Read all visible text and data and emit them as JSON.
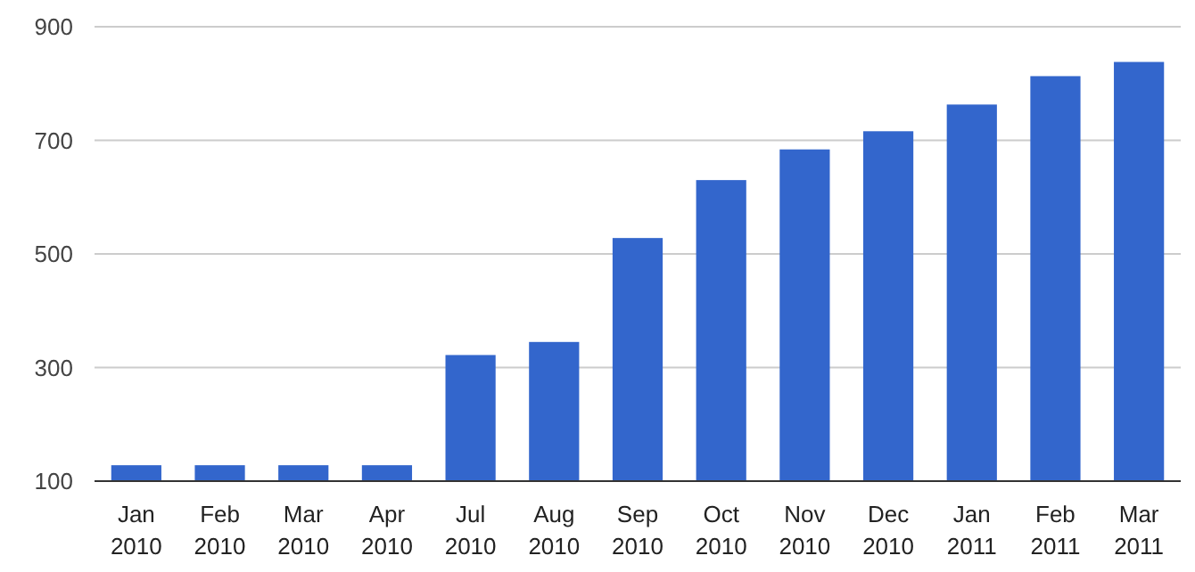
{
  "chart_data": {
    "type": "bar",
    "categories": [
      "Jan 2010",
      "Feb 2010",
      "Mar 2010",
      "Apr 2010",
      "Jul 2010",
      "Aug 2010",
      "Sep 2010",
      "Oct 2010",
      "Nov 2010",
      "Dec 2010",
      "Jan 2011",
      "Feb 2011",
      "Mar 2011"
    ],
    "values": [
      128,
      128,
      128,
      128,
      322,
      345,
      528,
      630,
      684,
      716,
      763,
      813,
      838
    ],
    "color": "#3366cc",
    "ylim": [
      100,
      900
    ],
    "yticks": [
      100,
      300,
      500,
      700,
      900
    ],
    "grid": "y"
  }
}
